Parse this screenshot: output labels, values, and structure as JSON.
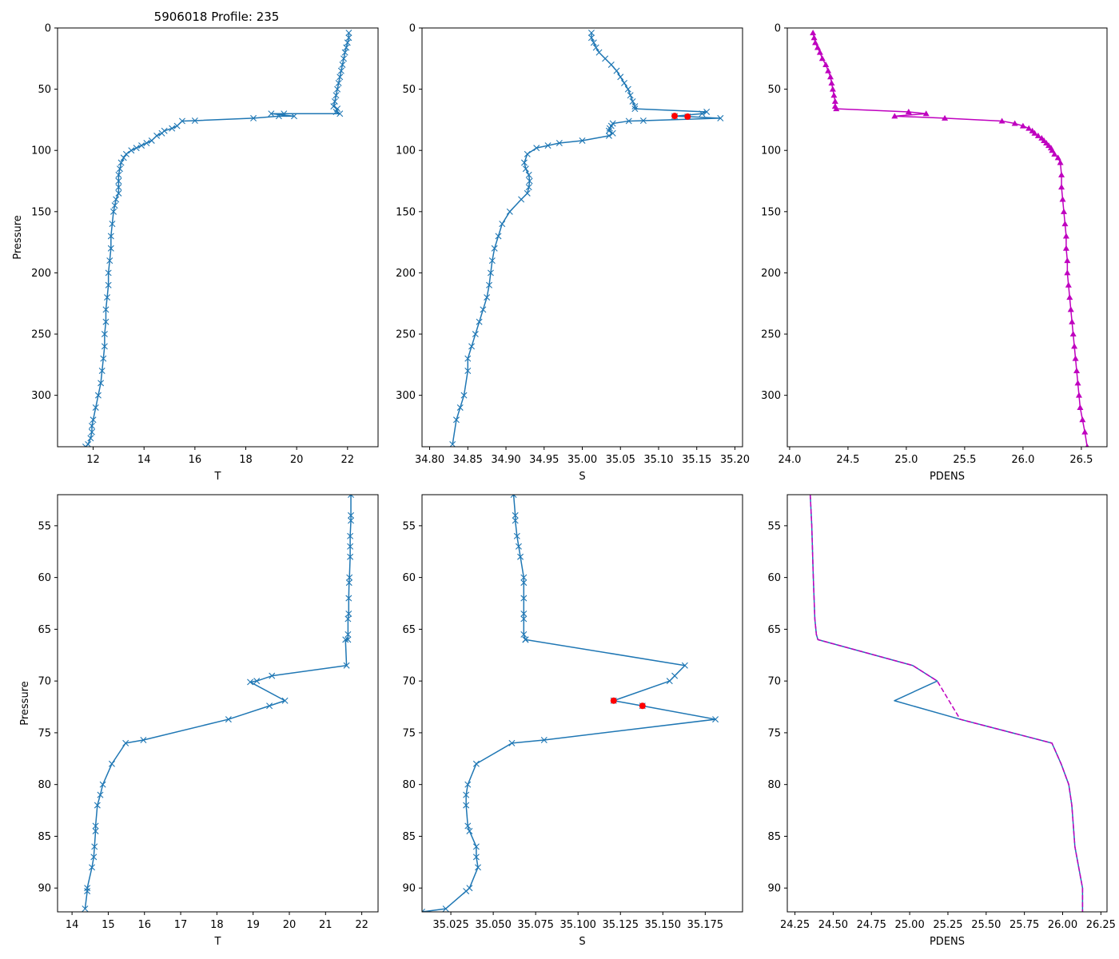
{
  "figure": {
    "title": "5906018 Profile: 235"
  },
  "chart_data": [
    {
      "name": "top-temperature",
      "type": "line",
      "xlabel": "T",
      "ylabel": "Pressure",
      "xlim": [
        10.6,
        23.2
      ],
      "ylim": [
        342,
        0
      ],
      "xticks": [
        12,
        14,
        16,
        18,
        20,
        22
      ],
      "xtick_labels": [
        "12",
        "14",
        "16",
        "18",
        "20",
        "22"
      ],
      "yticks": [
        0,
        50,
        100,
        150,
        200,
        250,
        300
      ],
      "ytick_labels": [
        "0",
        "50",
        "100",
        "150",
        "200",
        "250",
        "300"
      ],
      "series": [
        {
          "name": "T",
          "color": "#1f77b4",
          "marker": "x",
          "x": [
            22.05,
            22.05,
            22.0,
            21.95,
            21.9,
            21.85,
            21.8,
            21.75,
            21.7,
            21.65,
            21.6,
            21.55,
            21.5,
            21.45,
            21.6,
            21.55,
            21.7,
            19.5,
            19.0,
            19.9,
            19.3,
            18.3,
            16.0,
            15.5,
            15.3,
            15.1,
            14.8,
            14.7,
            14.5,
            14.3,
            14.1,
            13.9,
            13.7,
            13.5,
            13.3,
            13.2,
            13.1,
            13.05,
            13.0,
            13.0,
            13.0,
            13.0,
            12.9,
            12.85,
            12.8,
            12.75,
            12.7,
            12.7,
            12.65,
            12.6,
            12.6,
            12.55,
            12.5,
            12.5,
            12.45,
            12.45,
            12.4,
            12.35,
            12.3,
            12.2,
            12.1,
            12.0,
            11.95,
            11.95,
            11.9,
            11.8,
            11.7
          ],
          "y": [
            4,
            8,
            12,
            16,
            20,
            25,
            30,
            35,
            40,
            45,
            50,
            55,
            60,
            64,
            66,
            68.5,
            70,
            70,
            70,
            72,
            72,
            73.7,
            75.7,
            76,
            80,
            82,
            84,
            86,
            88,
            92,
            94,
            96,
            98,
            100,
            103,
            106,
            110,
            115,
            120,
            125,
            130,
            135,
            140,
            145,
            150,
            160,
            170,
            180,
            190,
            200,
            210,
            220,
            230,
            240,
            250,
            260,
            270,
            280,
            290,
            300,
            310,
            320,
            325,
            330,
            335,
            340,
            342
          ]
        }
      ]
    },
    {
      "name": "top-salinity",
      "type": "line",
      "xlabel": "S",
      "ylabel": "",
      "xlim": [
        34.79,
        35.21
      ],
      "ylim": [
        342,
        0
      ],
      "xticks": [
        34.8,
        34.85,
        34.9,
        34.95,
        35.0,
        35.05,
        35.1,
        35.15,
        35.2
      ],
      "xtick_labels": [
        "34.80",
        "34.85",
        "34.90",
        "34.95",
        "35.00",
        "35.05",
        "35.10",
        "35.15",
        "35.20"
      ],
      "yticks": [
        0,
        50,
        100,
        150,
        200,
        250,
        300
      ],
      "ytick_labels": [
        "0",
        "50",
        "100",
        "150",
        "200",
        "250",
        "300"
      ],
      "series": [
        {
          "name": "S",
          "color": "#1f77b4",
          "marker": "x",
          "x": [
            35.012,
            35.012,
            35.015,
            35.018,
            35.022,
            35.03,
            35.038,
            35.045,
            35.05,
            35.055,
            35.06,
            35.063,
            35.066,
            35.069,
            35.069,
            35.163,
            35.157,
            35.121,
            35.138,
            35.181,
            35.08,
            35.061,
            35.04,
            35.038,
            35.036,
            35.035,
            35.04,
            35.035,
            35.0,
            34.97,
            34.955,
            34.94,
            34.928,
            34.924,
            34.926,
            34.93,
            34.931,
            34.93,
            34.928,
            34.92,
            34.905,
            34.895,
            34.89,
            34.885,
            34.882,
            34.88,
            34.878,
            34.875,
            34.87,
            34.865,
            34.86,
            34.855,
            34.85,
            34.85,
            34.845,
            34.84,
            34.835,
            34.83
          ],
          "y": [
            4,
            8,
            12,
            16,
            20,
            25,
            30,
            35,
            40,
            45,
            50,
            55,
            60,
            64,
            66,
            68.5,
            70,
            72,
            72.4,
            73.7,
            75.7,
            76,
            78,
            80,
            82,
            84,
            86,
            88,
            92,
            94,
            96,
            98,
            103,
            110,
            115,
            120,
            125,
            130,
            135,
            140,
            150,
            160,
            170,
            180,
            190,
            200,
            210,
            220,
            230,
            240,
            250,
            260,
            270,
            280,
            300,
            310,
            320,
            340
          ]
        },
        {
          "name": "flagged",
          "color": "#ff0000",
          "marker": "o",
          "x": [
            35.121,
            35.138
          ],
          "y": [
            71.9,
            72.4
          ]
        }
      ]
    },
    {
      "name": "top-density",
      "type": "line",
      "xlabel": "PDENS",
      "ylabel": "",
      "xlim": [
        23.98,
        26.72
      ],
      "ylim": [
        342,
        0
      ],
      "xticks": [
        24.0,
        24.5,
        25.0,
        25.5,
        26.0,
        26.5
      ],
      "xtick_labels": [
        "24.0",
        "24.5",
        "25.0",
        "25.5",
        "26.0",
        "26.5"
      ],
      "yticks": [
        0,
        50,
        100,
        150,
        200,
        250,
        300
      ],
      "ytick_labels": [
        "0",
        "50",
        "100",
        "150",
        "200",
        "250",
        "300"
      ],
      "series": [
        {
          "name": "PDENS",
          "color": "#bf00bf",
          "marker": "^",
          "x": [
            24.2,
            24.21,
            24.22,
            24.24,
            24.26,
            24.28,
            24.31,
            24.33,
            24.35,
            24.36,
            24.37,
            24.38,
            24.39,
            24.39,
            24.4,
            25.02,
            25.17,
            24.9,
            25.33,
            25.82,
            25.93,
            26.0,
            26.05,
            26.08,
            26.1,
            26.13,
            26.16,
            26.18,
            26.2,
            26.22,
            26.24,
            26.25,
            26.27,
            26.3,
            26.32,
            26.33,
            26.33,
            26.34,
            26.35,
            26.36,
            26.37,
            26.37,
            26.38,
            26.38,
            26.39,
            26.4,
            26.41,
            26.42,
            26.43,
            26.44,
            26.45,
            26.46,
            26.47,
            26.48,
            26.49,
            26.51,
            26.53,
            26.55
          ],
          "y": [
            4,
            8,
            12,
            16,
            20,
            25,
            30,
            35,
            40,
            45,
            50,
            55,
            60,
            64,
            66,
            68.5,
            70,
            72,
            73.7,
            76,
            78,
            80,
            82,
            84,
            86,
            88,
            90,
            92,
            94,
            96,
            98,
            100,
            103,
            106,
            110,
            120,
            130,
            140,
            150,
            160,
            170,
            180,
            190,
            200,
            210,
            220,
            230,
            240,
            250,
            260,
            270,
            280,
            290,
            300,
            310,
            320,
            330,
            342
          ]
        }
      ]
    },
    {
      "name": "bottom-temperature",
      "type": "line",
      "xlabel": "T",
      "ylabel": "Pressure",
      "xlim": [
        13.6,
        22.45
      ],
      "ylim": [
        92.3,
        52
      ],
      "xticks": [
        14,
        15,
        16,
        17,
        18,
        19,
        20,
        21,
        22
      ],
      "xtick_labels": [
        "14",
        "15",
        "16",
        "17",
        "18",
        "19",
        "20",
        "21",
        "22"
      ],
      "yticks": [
        55,
        60,
        65,
        70,
        75,
        80,
        85,
        90
      ],
      "ytick_labels": [
        "55",
        "60",
        "65",
        "70",
        "75",
        "80",
        "85",
        "90"
      ],
      "series": [
        {
          "name": "T",
          "color": "#1f77b4",
          "marker": "x",
          "x": [
            21.7,
            21.7,
            21.7,
            21.68,
            21.68,
            21.68,
            21.66,
            21.65,
            21.64,
            21.64,
            21.62,
            21.62,
            21.62,
            21.55,
            21.58,
            19.52,
            19.1,
            18.92,
            19.88,
            19.45,
            18.32,
            15.97,
            15.48,
            15.1,
            14.85,
            14.78,
            14.7,
            14.65,
            14.65,
            14.62,
            14.6,
            14.55,
            14.42,
            14.42,
            14.36
          ],
          "y": [
            52,
            54,
            54.5,
            56,
            57,
            58,
            60,
            60.5,
            62,
            63.5,
            64,
            65.5,
            66,
            66,
            68.5,
            69.5,
            70,
            70.1,
            71.9,
            72.4,
            73.7,
            75.7,
            76,
            78,
            80,
            81,
            82,
            84,
            84.5,
            86,
            87,
            88,
            90,
            90.3,
            92
          ]
        }
      ]
    },
    {
      "name": "bottom-salinity",
      "type": "line",
      "xlabel": "S",
      "ylabel": "",
      "xlim": [
        35.008,
        35.197
      ],
      "ylim": [
        92.3,
        52
      ],
      "xticks": [
        35.025,
        35.05,
        35.075,
        35.1,
        35.125,
        35.15,
        35.175
      ],
      "xtick_labels": [
        "35.025",
        "35.050",
        "35.075",
        "35.100",
        "35.125",
        "35.150",
        "35.175"
      ],
      "yticks": [
        55,
        60,
        65,
        70,
        75,
        80,
        85,
        90
      ],
      "ytick_labels": [
        "55",
        "60",
        "65",
        "70",
        "75",
        "80",
        "85",
        "90"
      ],
      "series": [
        {
          "name": "S",
          "color": "#1f77b4",
          "marker": "x",
          "x": [
            35.062,
            35.063,
            35.063,
            35.064,
            35.065,
            35.066,
            35.068,
            35.068,
            35.068,
            35.068,
            35.068,
            35.068,
            35.069,
            35.069,
            35.069,
            35.163,
            35.157,
            35.154,
            35.121,
            35.138,
            35.181,
            35.08,
            35.061,
            35.04,
            35.035,
            35.034,
            35.034,
            35.035,
            35.036,
            35.04,
            35.04,
            35.041,
            35.036,
            35.034,
            35.022,
            35.008
          ],
          "y": [
            52,
            54,
            54.5,
            56,
            57,
            58,
            60,
            60.5,
            62,
            63.5,
            64,
            65.5,
            66,
            66,
            66,
            68.5,
            69.5,
            70,
            71.9,
            72.4,
            73.7,
            75.7,
            76,
            78,
            80,
            81,
            82,
            84,
            84.5,
            86,
            87,
            88,
            90,
            90.3,
            92,
            92.3
          ]
        },
        {
          "name": "flagged",
          "color": "#ff0000",
          "marker": "o",
          "x": [
            35.121,
            35.138
          ],
          "y": [
            71.9,
            72.4
          ]
        }
      ]
    },
    {
      "name": "bottom-density",
      "type": "line",
      "xlabel": "PDENS",
      "ylabel": "",
      "xlim": [
        24.2,
        26.29
      ],
      "ylim": [
        92.3,
        52
      ],
      "xticks": [
        24.25,
        24.5,
        24.75,
        25.0,
        25.25,
        25.5,
        25.75,
        26.0,
        26.25
      ],
      "xtick_labels": [
        "24.25",
        "24.50",
        "24.75",
        "25.00",
        "25.25",
        "25.50",
        "25.75",
        "26.00",
        "26.25"
      ],
      "yticks": [
        55,
        60,
        65,
        70,
        75,
        80,
        85,
        90
      ],
      "ytick_labels": [
        "55",
        "60",
        "65",
        "70",
        "75",
        "80",
        "85",
        "90"
      ],
      "series": [
        {
          "name": "PDENS",
          "color": "#1f77b4",
          "marker": "none",
          "x": [
            24.35,
            24.36,
            24.37,
            24.38,
            24.39,
            24.4,
            25.02,
            25.18,
            24.9,
            25.33,
            25.93,
            25.99,
            26.04,
            26.06,
            26.08,
            26.13,
            26.13
          ],
          "y": [
            52,
            55,
            60,
            64,
            65.5,
            66,
            68.5,
            70,
            71.9,
            73.7,
            76,
            78,
            80,
            82,
            86,
            90,
            92.3
          ]
        },
        {
          "name": "PDENS-dashed",
          "color": "#bf00bf",
          "marker": "none",
          "dashed": true,
          "x": [
            24.35,
            24.36,
            24.37,
            24.38,
            24.39,
            24.4,
            25.02,
            25.18,
            25.33,
            25.93,
            25.99,
            26.04,
            26.06,
            26.08,
            26.13,
            26.13
          ],
          "y": [
            52,
            55,
            60,
            64,
            65.5,
            66,
            68.5,
            70,
            73.7,
            76,
            78,
            80,
            82,
            86,
            90,
            92.3
          ]
        }
      ]
    }
  ]
}
